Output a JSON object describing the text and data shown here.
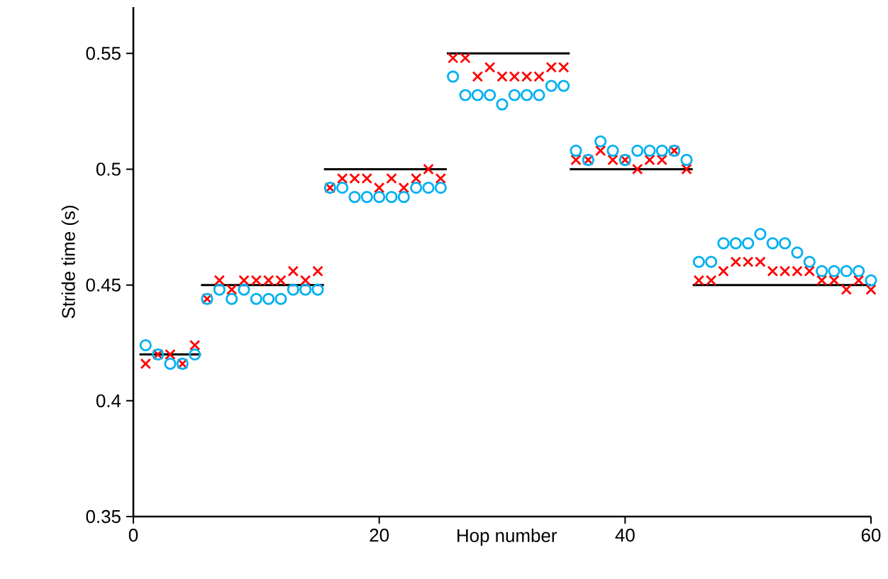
{
  "chart_data": {
    "type": "scatter",
    "xlabel": "Hop number",
    "ylabel": "Stride time (s)",
    "xlim": [
      0,
      60
    ],
    "ylim": [
      0.35,
      0.57
    ],
    "xticks": [
      0,
      20,
      40,
      60
    ],
    "yticks": [
      0.35,
      0.4,
      0.45,
      0.5,
      0.55
    ],
    "grid": false,
    "series": [
      {
        "type": "line",
        "color": "#000000",
        "marker": "none",
        "line_style": "solid",
        "x": [
          0.5,
          5.5
        ],
        "values": [
          0.42,
          0.42
        ]
      },
      {
        "type": "line",
        "color": "#000000",
        "marker": "none",
        "line_style": "solid",
        "x": [
          5.5,
          15.5
        ],
        "values": [
          0.45,
          0.45
        ]
      },
      {
        "type": "line",
        "color": "#000000",
        "marker": "none",
        "line_style": "solid",
        "x": [
          15.5,
          25.5
        ],
        "values": [
          0.5,
          0.5
        ]
      },
      {
        "type": "line",
        "color": "#000000",
        "marker": "none",
        "line_style": "solid",
        "x": [
          25.5,
          35.5
        ],
        "values": [
          0.55,
          0.55
        ]
      },
      {
        "type": "line",
        "color": "#000000",
        "marker": "none",
        "line_style": "solid",
        "x": [
          35.5,
          45.5
        ],
        "values": [
          0.5,
          0.5
        ]
      },
      {
        "type": "line",
        "color": "#000000",
        "marker": "none",
        "line_style": "solid",
        "x": [
          45.5,
          60
        ],
        "values": [
          0.45,
          0.45
        ]
      },
      {
        "color": "#ff0000",
        "marker": "cross",
        "x": [
          1,
          2,
          3,
          4,
          5,
          6,
          7,
          8,
          9,
          10,
          11,
          12,
          13,
          14,
          15,
          16,
          17,
          18,
          19,
          20,
          21,
          22,
          23,
          24,
          25,
          26,
          27,
          28,
          29,
          30,
          31,
          32,
          33,
          34,
          35,
          36,
          37,
          38,
          39,
          40,
          41,
          42,
          43,
          44,
          45,
          46,
          47,
          48,
          49,
          50,
          51,
          52,
          53,
          54,
          55,
          56,
          57,
          58,
          59,
          60
        ],
        "values": [
          0.416,
          0.42,
          0.42,
          0.416,
          0.424,
          0.444,
          0.452,
          0.448,
          0.452,
          0.452,
          0.452,
          0.452,
          0.456,
          0.452,
          0.456,
          0.492,
          0.496,
          0.496,
          0.496,
          0.492,
          0.496,
          0.492,
          0.496,
          0.5,
          0.496,
          0.548,
          0.548,
          0.54,
          0.544,
          0.54,
          0.54,
          0.54,
          0.54,
          0.544,
          0.544,
          0.504,
          0.504,
          0.508,
          0.504,
          0.504,
          0.5,
          0.504,
          0.504,
          0.508,
          0.5,
          0.452,
          0.452,
          0.456,
          0.46,
          0.46,
          0.46,
          0.456,
          0.456,
          0.456,
          0.456,
          0.452,
          0.452,
          0.448,
          0.452,
          0.448
        ]
      },
      {
        "color": "#00b0f0",
        "marker": "circle",
        "x": [
          1,
          2,
          3,
          4,
          5,
          6,
          7,
          8,
          9,
          10,
          11,
          12,
          13,
          14,
          15,
          16,
          17,
          18,
          19,
          20,
          21,
          22,
          23,
          24,
          25,
          26,
          27,
          28,
          29,
          30,
          31,
          32,
          33,
          34,
          35,
          36,
          37,
          38,
          39,
          40,
          41,
          42,
          43,
          44,
          45,
          46,
          47,
          48,
          49,
          50,
          51,
          52,
          53,
          54,
          55,
          56,
          57,
          58,
          59,
          60
        ],
        "values": [
          0.424,
          0.42,
          0.416,
          0.416,
          0.42,
          0.444,
          0.448,
          0.444,
          0.448,
          0.444,
          0.444,
          0.444,
          0.448,
          0.448,
          0.448,
          0.492,
          0.492,
          0.488,
          0.488,
          0.488,
          0.488,
          0.488,
          0.492,
          0.492,
          0.492,
          0.54,
          0.532,
          0.532,
          0.532,
          0.528,
          0.532,
          0.532,
          0.532,
          0.536,
          0.536,
          0.508,
          0.504,
          0.512,
          0.508,
          0.504,
          0.508,
          0.508,
          0.508,
          0.508,
          0.504,
          0.46,
          0.46,
          0.468,
          0.468,
          0.468,
          0.472,
          0.468,
          0.468,
          0.464,
          0.46,
          0.456,
          0.456,
          0.456,
          0.456,
          0.452
        ]
      }
    ]
  }
}
